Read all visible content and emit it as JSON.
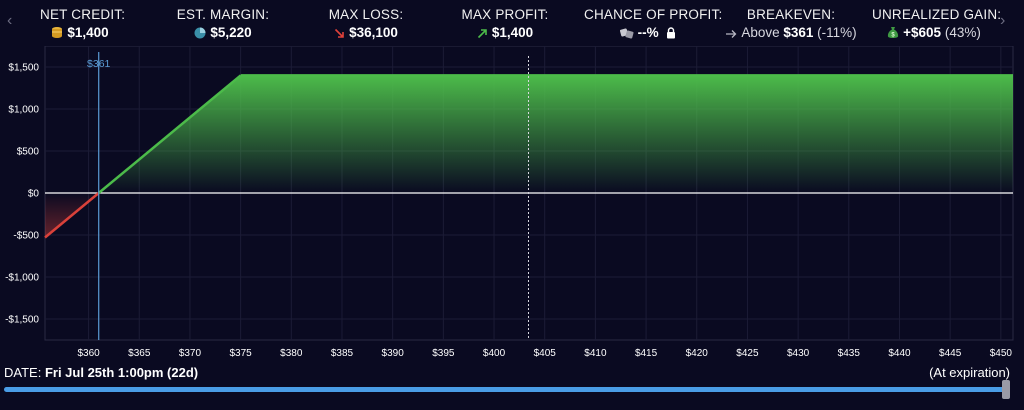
{
  "nav": {
    "prev_icon": "‹",
    "next_icon": "›"
  },
  "stats": {
    "net_credit": {
      "label": "NET CREDIT:",
      "value": "$1,400",
      "icon": "coins-icon"
    },
    "est_margin": {
      "label": "EST. MARGIN:",
      "value": "$5,220",
      "icon": "pie-chart-icon"
    },
    "max_loss": {
      "label": "MAX LOSS:",
      "value": "$36,100",
      "icon": "arrow-down-right-icon"
    },
    "max_profit": {
      "label": "MAX PROFIT:",
      "value": "$1,400",
      "icon": "arrow-up-right-icon"
    },
    "chance_of_profit": {
      "label": "CHANCE OF PROFIT:",
      "value": "--%",
      "icon": "dice-icon"
    },
    "breakeven": {
      "label": "BREAKEVEN:",
      "value_prefix": "Above",
      "value": "$361",
      "value_suffix": "(-11%)",
      "icon": "arrow-right-icon"
    },
    "unrealized_gain": {
      "label": "UNREALIZED GAIN:",
      "value": "+$605",
      "value_suffix": "(43%)",
      "icon": "money-bag-icon"
    }
  },
  "colors": {
    "profit": "#4cbb4a",
    "loss": "#d9413a",
    "breakeven_line": "#5a9bd5",
    "axis": "#ffffff",
    "grid": "#1c1c36"
  },
  "chart_data": {
    "type": "area",
    "breakeven_label": "$361",
    "x_ticks": [
      "$360",
      "$365",
      "$370",
      "$375",
      "$380",
      "$385",
      "$390",
      "$395",
      "$400",
      "$405",
      "$410",
      "$415",
      "$420",
      "$425",
      "$430",
      "$435",
      "$440",
      "$445",
      "$450"
    ],
    "y_ticks": [
      "$1,500",
      "$1,000",
      "$500",
      "$0",
      "-$500",
      "-$1,000",
      "-$1,500"
    ],
    "y_tick_values": [
      1500,
      1000,
      500,
      0,
      -500,
      -1000,
      -1500
    ],
    "xlim": [
      355.7,
      451.2
    ],
    "ylim": [
      -1750,
      1750
    ],
    "series": [
      {
        "x": [
          355.7,
          361,
          375,
          451.2
        ],
        "y": [
          -530,
          0,
          1400,
          1400
        ]
      }
    ],
    "breakeven_x": 361,
    "current_price_x": 403.4
  },
  "footer": {
    "date_label": "DATE:",
    "date_value": "Fri Jul 25th 1:00pm (22d)",
    "expiry_label": "(At expiration)",
    "slider_fraction": 1.0
  }
}
